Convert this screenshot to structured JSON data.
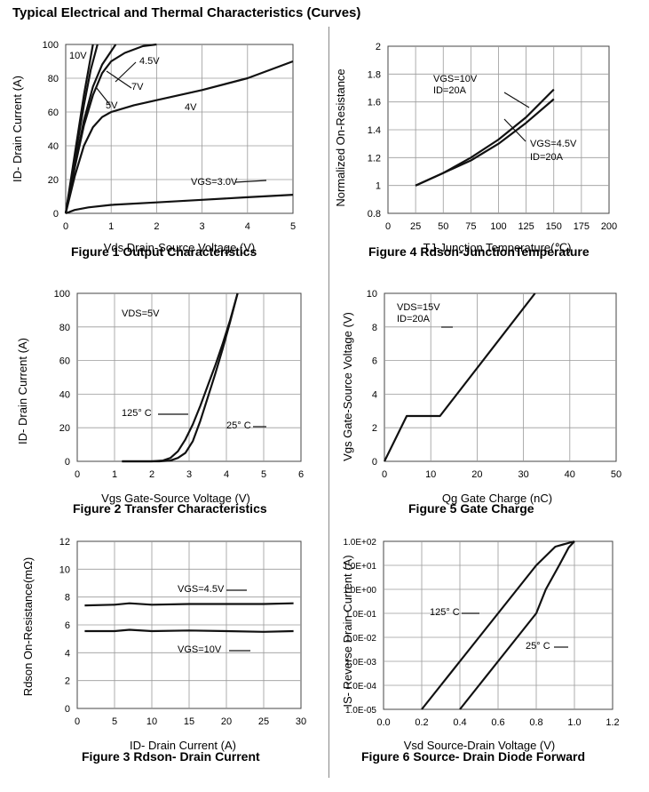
{
  "main_title": "Typical Electrical and Thermal Characteristics (Curves)",
  "chart_data": [
    {
      "id": "fig1",
      "type": "line",
      "caption": "Figure 1 Output Characteristics",
      "xlabel": "Vds Drain-Source Voltage (V)",
      "ylabel": "ID- Drain Current (A)",
      "xlim": [
        0,
        5
      ],
      "ylim": [
        0,
        100
      ],
      "xticks": [
        "0",
        "1",
        "2",
        "3",
        "4",
        "5"
      ],
      "yticks": [
        "0",
        "20",
        "40",
        "60",
        "80",
        "100"
      ],
      "grid": true,
      "series": [
        {
          "name": "10V",
          "points": [
            [
              0,
              0
            ],
            [
              0.2,
              35
            ],
            [
              0.4,
              70
            ],
            [
              0.6,
              100
            ]
          ]
        },
        {
          "name": "7V",
          "points": [
            [
              0,
              0
            ],
            [
              0.2,
              32
            ],
            [
              0.4,
              64
            ],
            [
              0.55,
              85
            ],
            [
              0.7,
              100
            ]
          ]
        },
        {
          "name": "5V",
          "points": [
            [
              0,
              0
            ],
            [
              0.2,
              28
            ],
            [
              0.4,
              55
            ],
            [
              0.6,
              75
            ],
            [
              0.8,
              88
            ],
            [
              1.0,
              96
            ],
            [
              1.1,
              100
            ]
          ]
        },
        {
          "name": "4.5V",
          "points": [
            [
              0,
              0
            ],
            [
              0.2,
              27
            ],
            [
              0.4,
              52
            ],
            [
              0.6,
              70
            ],
            [
              0.8,
              83
            ],
            [
              1.0,
              90
            ],
            [
              1.3,
              95
            ],
            [
              1.7,
              99
            ],
            [
              2.0,
              100
            ]
          ]
        },
        {
          "name": "4V",
          "points": [
            [
              0,
              0
            ],
            [
              0.2,
              22
            ],
            [
              0.4,
              40
            ],
            [
              0.6,
              51
            ],
            [
              0.8,
              57
            ],
            [
              1.0,
              60
            ],
            [
              1.5,
              64
            ],
            [
              2.0,
              67
            ],
            [
              3.0,
              73
            ],
            [
              4.0,
              80
            ],
            [
              4.6,
              86
            ],
            [
              5.0,
              90
            ]
          ]
        },
        {
          "name": "VGS=3.0V",
          "points": [
            [
              0,
              0
            ],
            [
              0.2,
              2
            ],
            [
              0.5,
              3.5
            ],
            [
              1.0,
              5
            ],
            [
              2.0,
              6.5
            ],
            [
              3.0,
              8
            ],
            [
              4.0,
              9.5
            ],
            [
              5.0,
              11
            ]
          ]
        }
      ],
      "annotations": [
        "10V",
        "4.5V",
        "7V",
        "5V",
        "4V",
        "VGS=3.0V"
      ]
    },
    {
      "id": "fig4",
      "type": "line",
      "caption": "Figure 4 Rdson-JunctionTemperature",
      "xlabel": "TJ-Junction Temperature(℃)",
      "ylabel": "Normalized On-Resistance",
      "xlim": [
        0,
        200
      ],
      "ylim": [
        0.8,
        2.0
      ],
      "xticks": [
        "0",
        "25",
        "50",
        "75",
        "100",
        "125",
        "150",
        "175",
        "200"
      ],
      "yticks": [
        "0.8",
        "1",
        "1.2",
        "1.4",
        "1.6",
        "1.8",
        "2"
      ],
      "grid": true,
      "series": [
        {
          "name": "VGS=10V ID=20A",
          "points": [
            [
              25,
              1.0
            ],
            [
              50,
              1.09
            ],
            [
              75,
              1.2
            ],
            [
              100,
              1.33
            ],
            [
              125,
              1.49
            ],
            [
              150,
              1.69
            ]
          ]
        },
        {
          "name": "VGS=4.5V ID=20A",
          "points": [
            [
              25,
              1.0
            ],
            [
              50,
              1.09
            ],
            [
              75,
              1.18
            ],
            [
              100,
              1.3
            ],
            [
              125,
              1.45
            ],
            [
              150,
              1.62
            ]
          ]
        }
      ],
      "annotations": [
        "VGS=10V",
        "ID=20A",
        "VGS=4.5V",
        "ID=20A"
      ]
    },
    {
      "id": "fig2",
      "type": "line",
      "caption": "Figure 2 Transfer Characteristics",
      "xlabel": "Vgs Gate-Source Voltage (V)",
      "ylabel": "ID- Drain Current (A)",
      "xlim": [
        0,
        6
      ],
      "ylim": [
        0,
        100
      ],
      "xticks": [
        "0",
        "1",
        "2",
        "3",
        "4",
        "5",
        "6"
      ],
      "yticks": [
        "0",
        "20",
        "40",
        "60",
        "80",
        "100"
      ],
      "grid": true,
      "series": [
        {
          "name": "125° C",
          "points": [
            [
              1.2,
              0
            ],
            [
              2.0,
              0
            ],
            [
              2.3,
              0.5
            ],
            [
              2.5,
              2
            ],
            [
              2.7,
              6
            ],
            [
              2.9,
              13
            ],
            [
              3.1,
              22
            ],
            [
              3.3,
              33
            ],
            [
              3.5,
              45
            ],
            [
              3.7,
              57
            ],
            [
              3.9,
              70
            ],
            [
              4.1,
              84
            ],
            [
              4.3,
              100
            ]
          ]
        },
        {
          "name": "25° C",
          "points": [
            [
              1.2,
              0
            ],
            [
              2.2,
              0
            ],
            [
              2.5,
              0.5
            ],
            [
              2.7,
              2
            ],
            [
              2.9,
              5
            ],
            [
              3.1,
              12
            ],
            [
              3.3,
              24
            ],
            [
              3.5,
              38
            ],
            [
              3.7,
              52
            ],
            [
              3.9,
              67
            ],
            [
              4.1,
              83
            ],
            [
              4.3,
              100
            ]
          ]
        }
      ],
      "annotations": [
        "VDS=5V",
        "125° C",
        "25° C"
      ]
    },
    {
      "id": "fig5",
      "type": "line",
      "caption": "Figure 5 Gate Charge",
      "xlabel": "Qg Gate Charge (nC)",
      "ylabel": "Vgs Gate-Source Voltage (V)",
      "xlim": [
        0,
        50
      ],
      "ylim": [
        0,
        10
      ],
      "xticks": [
        "0",
        "10",
        "20",
        "30",
        "40",
        "50"
      ],
      "yticks": [
        "0",
        "2",
        "4",
        "6",
        "8",
        "10"
      ],
      "grid": true,
      "series": [
        {
          "name": "VDS=15V ID=20A",
          "points": [
            [
              0,
              0
            ],
            [
              4.8,
              2.7
            ],
            [
              12,
              2.7
            ],
            [
              32.5,
              10
            ]
          ]
        }
      ],
      "annotations": [
        "VDS=15V",
        "ID=20A"
      ]
    },
    {
      "id": "fig3",
      "type": "line",
      "caption": "Figure 3 Rdson- Drain Current",
      "xlabel": "ID- Drain Current (A)",
      "ylabel": "Rdson On-Resistance(mΩ)",
      "xlim": [
        0,
        30
      ],
      "ylim": [
        0,
        12
      ],
      "xticks": [
        "0",
        "5",
        "10",
        "15",
        "20",
        "25",
        "30"
      ],
      "yticks": [
        "0",
        "2",
        "4",
        "6",
        "8",
        "10",
        "12"
      ],
      "grid": true,
      "series": [
        {
          "name": "VGS=4.5V",
          "points": [
            [
              1,
              7.4
            ],
            [
              5,
              7.45
            ],
            [
              7,
              7.55
            ],
            [
              10,
              7.45
            ],
            [
              15,
              7.5
            ],
            [
              20,
              7.5
            ],
            [
              25,
              7.5
            ],
            [
              29,
              7.55
            ]
          ]
        },
        {
          "name": "VGS=10V",
          "points": [
            [
              1,
              5.55
            ],
            [
              5,
              5.55
            ],
            [
              7,
              5.65
            ],
            [
              10,
              5.55
            ],
            [
              15,
              5.6
            ],
            [
              20,
              5.55
            ],
            [
              25,
              5.5
            ],
            [
              29,
              5.55
            ]
          ]
        }
      ],
      "annotations": [
        "VGS=4.5V",
        "VGS=10V"
      ]
    },
    {
      "id": "fig6",
      "type": "line",
      "caption": "Figure 6 Source- Drain Diode Forward",
      "xlabel": "Vsd Source-Drain Voltage (V)",
      "ylabel": "IS- Reverse Drain Current (A)",
      "xlim": [
        0,
        1.2
      ],
      "ylim": [
        -5,
        2
      ],
      "log_y": true,
      "xticks": [
        "0.0",
        "0.2",
        "0.4",
        "0.6",
        "0.8",
        "1.0",
        "1.2"
      ],
      "yticks": [
        "1.0E-05",
        "1.0E-04",
        "1.0E-03",
        "1.0E-02",
        "1.0E-01",
        "1.0E+00",
        "1.0E+01",
        "1.0E+02"
      ],
      "grid": true,
      "series": [
        {
          "name": "125° C",
          "points": [
            [
              0.2,
              1e-05
            ],
            [
              0.3,
              0.0001
            ],
            [
              0.4,
              0.001
            ],
            [
              0.5,
              0.01
            ],
            [
              0.6,
              0.1
            ],
            [
              0.7,
              1
            ],
            [
              0.8,
              10
            ],
            [
              0.9,
              60
            ],
            [
              1.0,
              100
            ]
          ]
        },
        {
          "name": "25° C",
          "points": [
            [
              0.4,
              1e-05
            ],
            [
              0.5,
              0.0001
            ],
            [
              0.6,
              0.001
            ],
            [
              0.7,
              0.01
            ],
            [
              0.8,
              0.1
            ],
            [
              0.85,
              1
            ],
            [
              0.92,
              10
            ],
            [
              0.97,
              55
            ],
            [
              1.0,
              100
            ]
          ]
        }
      ],
      "annotations": [
        "125° C",
        "25° C"
      ]
    }
  ]
}
